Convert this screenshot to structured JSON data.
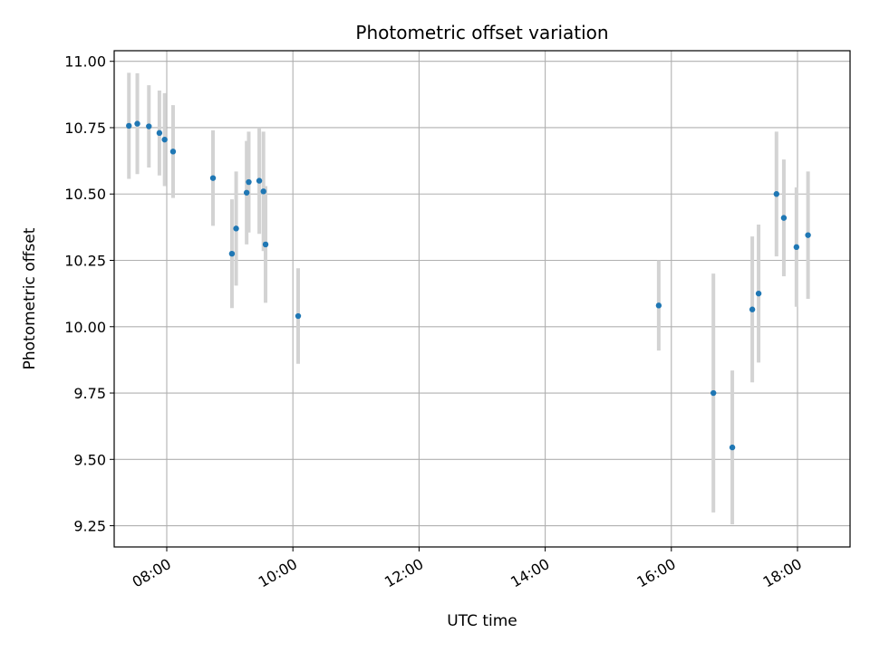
{
  "chart_data": {
    "type": "scatter",
    "title": "Photometric offset variation",
    "xlabel": "UTC time",
    "ylabel": "Photometric offset",
    "xlim": [
      "07:10",
      "18:50"
    ],
    "ylim": [
      9.17,
      11.04
    ],
    "grid": true,
    "x_ticks": [
      "08:00",
      "10:00",
      "12:00",
      "14:00",
      "16:00",
      "18:00"
    ],
    "y_ticks": [
      9.25,
      9.5,
      9.75,
      10.0,
      10.25,
      10.5,
      10.75,
      11.0
    ],
    "y_tick_labels": [
      "9.25",
      "9.50",
      "9.75",
      "10.00",
      "10.25",
      "10.50",
      "10.75",
      "11.00"
    ],
    "marker_color": "#1f77b4",
    "errorbar_color": "#d3d3d3",
    "points": [
      {
        "x": "07:24",
        "y": 10.757,
        "err": 0.2
      },
      {
        "x": "07:32",
        "y": 10.765,
        "err": 0.19
      },
      {
        "x": "07:43",
        "y": 10.755,
        "err": 0.155
      },
      {
        "x": "07:53",
        "y": 10.73,
        "err": 0.16
      },
      {
        "x": "07:58",
        "y": 10.705,
        "err": 0.175
      },
      {
        "x": "08:06",
        "y": 10.66,
        "err": 0.175
      },
      {
        "x": "08:44",
        "y": 10.56,
        "err": 0.18
      },
      {
        "x": "09:02",
        "y": 10.275,
        "err": 0.205
      },
      {
        "x": "09:06",
        "y": 10.37,
        "err": 0.215
      },
      {
        "x": "09:16",
        "y": 10.505,
        "err": 0.195
      },
      {
        "x": "09:18",
        "y": 10.545,
        "err": 0.19
      },
      {
        "x": "09:28",
        "y": 10.55,
        "err": 0.2
      },
      {
        "x": "09:32",
        "y": 10.51,
        "err": 0.225
      },
      {
        "x": "09:34",
        "y": 10.31,
        "err": 0.22
      },
      {
        "x": "10:05",
        "y": 10.04,
        "err": 0.18
      },
      {
        "x": "15:48",
        "y": 10.08,
        "err": 0.17
      },
      {
        "x": "16:40",
        "y": 9.75,
        "err": 0.45
      },
      {
        "x": "16:58",
        "y": 9.545,
        "err": 0.29
      },
      {
        "x": "17:17",
        "y": 10.065,
        "err": 0.275
      },
      {
        "x": "17:23",
        "y": 10.125,
        "err": 0.26
      },
      {
        "x": "17:40",
        "y": 10.5,
        "err": 0.235
      },
      {
        "x": "17:47",
        "y": 10.41,
        "err": 0.22
      },
      {
        "x": "17:59",
        "y": 10.3,
        "err": 0.225
      },
      {
        "x": "18:10",
        "y": 10.345,
        "err": 0.24
      }
    ]
  }
}
